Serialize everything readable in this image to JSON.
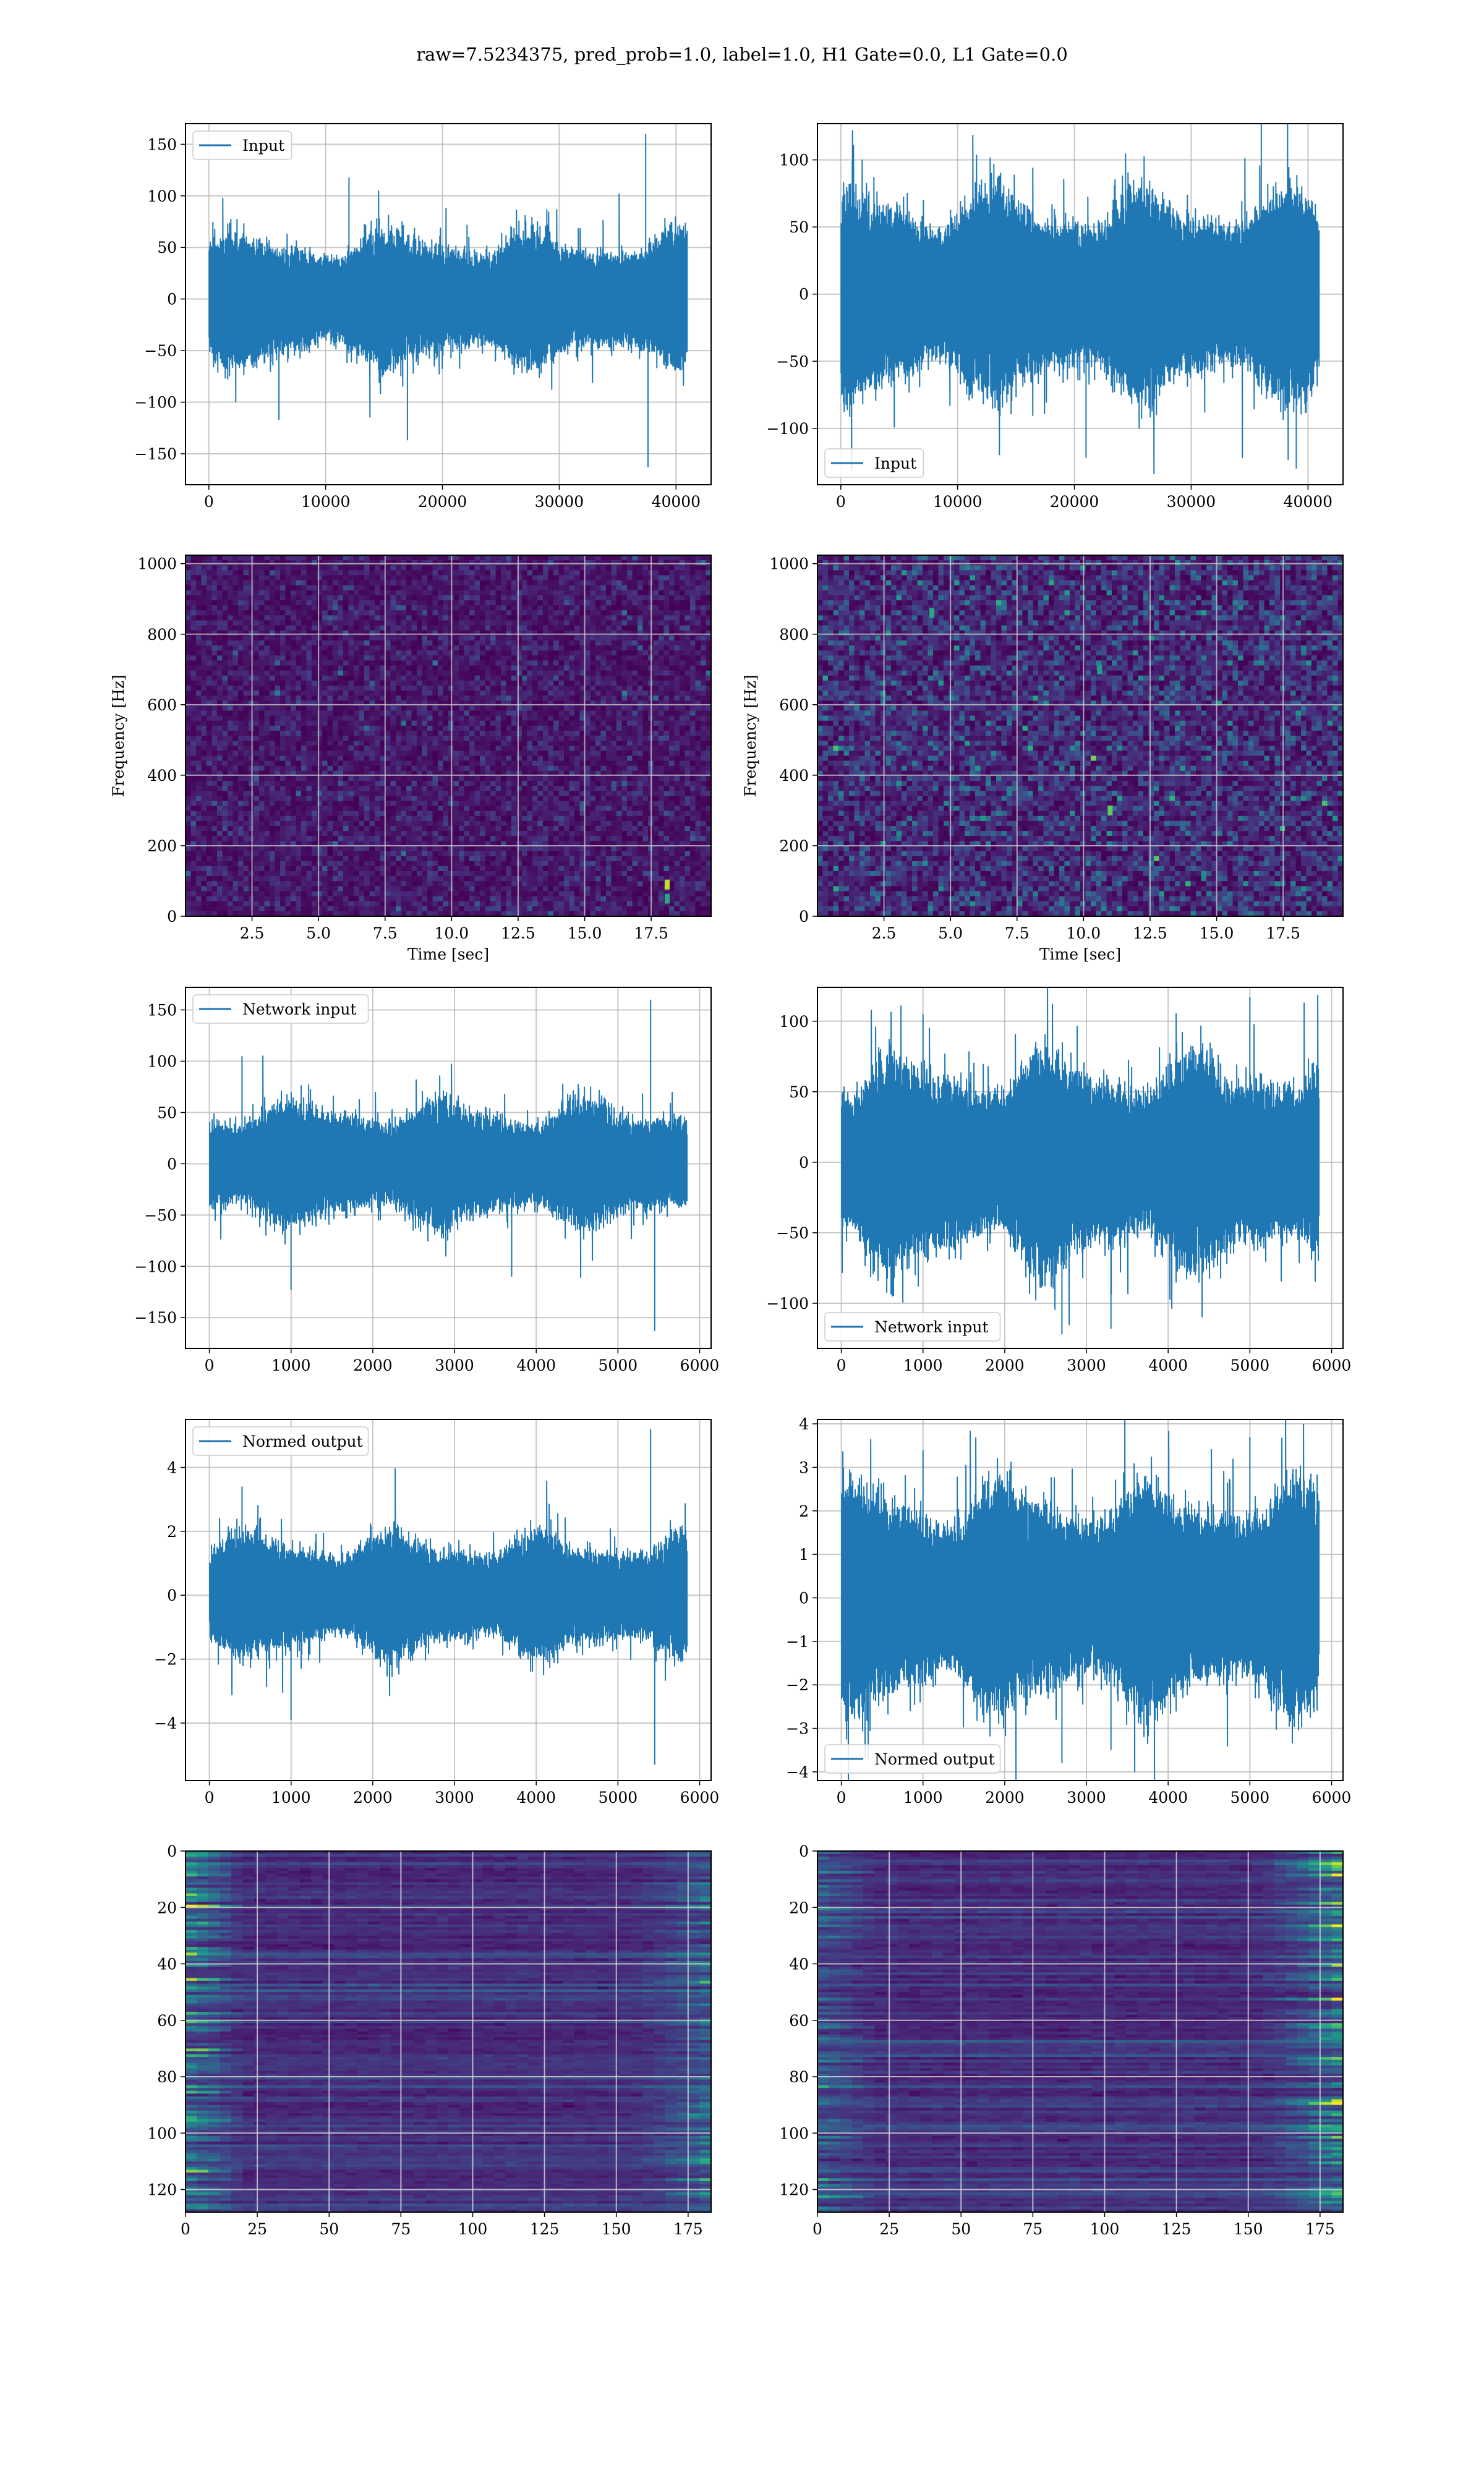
{
  "figure": {
    "title": "raw=7.5234375, pred_prob=1.0, label=1.0, H1 Gate=0.0, L1 Gate=0.0",
    "line_color": "#1f77b4",
    "grid_color": "#b0b0b0",
    "colormap": "viridis"
  },
  "chart_data": [
    {
      "id": "input-h1",
      "type": "line",
      "title": "",
      "xlabel": "",
      "ylabel": "",
      "series": [
        {
          "name": "Input",
          "n": 40960,
          "amplitude_sd": 22,
          "spikes": [
            {
              "x": 37400,
              "y": 160
            },
            {
              "x": 37600,
              "y": -163
            },
            {
              "x": 17000,
              "y": -137
            },
            {
              "x": 12000,
              "y": 118
            },
            {
              "x": 6000,
              "y": -117
            }
          ]
        }
      ],
      "xlim": [
        -2000,
        43000
      ],
      "ylim": [
        -180,
        170
      ],
      "xticks": [
        0,
        10000,
        20000,
        30000,
        40000
      ],
      "yticks": [
        -150,
        -100,
        -50,
        0,
        50,
        100,
        150
      ],
      "legend": "upper-left",
      "grid": true
    },
    {
      "id": "input-l1",
      "type": "line",
      "title": "",
      "xlabel": "",
      "ylabel": "",
      "series": [
        {
          "name": "Input",
          "n": 40960,
          "amplitude_sd": 26,
          "spikes": [
            {
              "x": 1000,
              "y": 122
            },
            {
              "x": 36000,
              "y": 127
            },
            {
              "x": 39000,
              "y": -130
            },
            {
              "x": 21000,
              "y": -122
            }
          ]
        }
      ],
      "xlim": [
        -2000,
        43000
      ],
      "ylim": [
        -142,
        127
      ],
      "xticks": [
        0,
        10000,
        20000,
        30000,
        40000
      ],
      "yticks": [
        -100,
        -50,
        0,
        50,
        100
      ],
      "legend": "lower-left",
      "grid": true
    },
    {
      "id": "spectrogram-h1",
      "type": "heatmap",
      "title": "",
      "xlabel": "Time [sec]",
      "ylabel": "Frequency [Hz]",
      "xlim": [
        0,
        19.75
      ],
      "ylim": [
        0,
        1024
      ],
      "xticks": [
        2.5,
        5.0,
        7.5,
        10.0,
        12.5,
        15.0,
        17.5
      ],
      "yticks": [
        0,
        200,
        400,
        600,
        800,
        1000
      ],
      "intensity": 0.16,
      "hotspots": [
        {
          "t": 18.1,
          "f": 90,
          "v": 0.9
        },
        {
          "t": 18.1,
          "f": 50,
          "v": 0.6
        }
      ],
      "grid": true
    },
    {
      "id": "spectrogram-l1",
      "type": "heatmap",
      "title": "",
      "xlabel": "Time [sec]",
      "ylabel": "Frequency [Hz]",
      "xlim": [
        0,
        19.75
      ],
      "ylim": [
        0,
        1024
      ],
      "xticks": [
        2.5,
        5.0,
        7.5,
        10.0,
        12.5,
        15.0,
        17.5
      ],
      "yticks": [
        0,
        200,
        400,
        600,
        800,
        1000
      ],
      "intensity": 0.3,
      "hotspots": [
        {
          "t": 11.0,
          "f": 300,
          "v": 0.75
        },
        {
          "t": 4.3,
          "f": 860,
          "v": 0.6
        },
        {
          "t": 10.6,
          "f": 700,
          "v": 0.55
        }
      ],
      "grid": true
    },
    {
      "id": "network-input-h1",
      "type": "line",
      "title": "",
      "xlabel": "",
      "ylabel": "",
      "series": [
        {
          "name": "Network input",
          "n": 5848,
          "amplitude_sd": 21,
          "spikes": [
            {
              "x": 5400,
              "y": 160
            },
            {
              "x": 5450,
              "y": -163
            },
            {
              "x": 1000,
              "y": -123
            },
            {
              "x": 400,
              "y": 105
            },
            {
              "x": 3700,
              "y": -110
            }
          ]
        }
      ],
      "xlim": [
        -292,
        6140
      ],
      "ylim": [
        -180,
        172
      ],
      "xticks": [
        0,
        1000,
        2000,
        3000,
        4000,
        5000,
        6000
      ],
      "yticks": [
        -150,
        -100,
        -50,
        0,
        50,
        100,
        150
      ],
      "legend": "upper-left",
      "grid": true
    },
    {
      "id": "network-input-l1",
      "type": "line",
      "title": "",
      "xlabel": "",
      "ylabel": "",
      "series": [
        {
          "name": "Network input",
          "n": 5848,
          "amplitude_sd": 26,
          "spikes": [
            {
              "x": 1000,
              "y": 105
            },
            {
              "x": 5000,
              "y": 117
            },
            {
              "x": 2700,
              "y": -122
            },
            {
              "x": 3300,
              "y": -118
            }
          ]
        }
      ],
      "xlim": [
        -292,
        6140
      ],
      "ylim": [
        -132,
        124
      ],
      "xticks": [
        0,
        1000,
        2000,
        3000,
        4000,
        5000,
        6000
      ],
      "yticks": [
        -100,
        -50,
        0,
        50,
        100
      ],
      "legend": "lower-left",
      "grid": true
    },
    {
      "id": "normed-output-h1",
      "type": "line",
      "title": "",
      "xlabel": "",
      "ylabel": "",
      "series": [
        {
          "name": "Normed output",
          "n": 5848,
          "amplitude_sd": 0.65,
          "spikes": [
            {
              "x": 5400,
              "y": 5.2
            },
            {
              "x": 5450,
              "y": -5.3
            },
            {
              "x": 1000,
              "y": -3.9
            },
            {
              "x": 400,
              "y": 3.4
            }
          ]
        }
      ],
      "xlim": [
        -292,
        6140
      ],
      "ylim": [
        -5.8,
        5.5
      ],
      "xticks": [
        0,
        1000,
        2000,
        3000,
        4000,
        5000,
        6000
      ],
      "yticks": [
        -4,
        -2,
        0,
        2,
        4
      ],
      "legend": "upper-left",
      "grid": true
    },
    {
      "id": "normed-output-l1",
      "type": "line",
      "title": "",
      "xlabel": "",
      "ylabel": "",
      "series": [
        {
          "name": "Normed output",
          "n": 5848,
          "amplitude_sd": 0.9,
          "spikes": [
            {
              "x": 5000,
              "y": 3.7
            },
            {
              "x": 1000,
              "y": 3.4
            },
            {
              "x": 2700,
              "y": -3.8
            },
            {
              "x": 3300,
              "y": -3.5
            }
          ]
        }
      ],
      "xlim": [
        -292,
        6140
      ],
      "ylim": [
        -4.2,
        4.1
      ],
      "xticks": [
        0,
        1000,
        2000,
        3000,
        4000,
        5000,
        6000
      ],
      "yticks": [
        -4,
        -3,
        -2,
        -1,
        0,
        1,
        2,
        3,
        4
      ],
      "legend": "lower-left",
      "grid": true
    },
    {
      "id": "feature-map-h1",
      "type": "heatmap",
      "title": "",
      "xlabel": "",
      "ylabel": "",
      "rows": 128,
      "cols": 183,
      "xlim": [
        0,
        183
      ],
      "ylim": [
        128,
        0
      ],
      "xticks": [
        0,
        25,
        50,
        75,
        100,
        125,
        150,
        175
      ],
      "yticks": [
        0,
        20,
        40,
        60,
        80,
        100,
        120
      ],
      "left_activity": 0.75,
      "right_activity": 0.55,
      "grid": true
    },
    {
      "id": "feature-map-l1",
      "type": "heatmap",
      "title": "",
      "xlabel": "",
      "ylabel": "",
      "rows": 128,
      "cols": 183,
      "xlim": [
        0,
        183
      ],
      "ylim": [
        128,
        0
      ],
      "xticks": [
        0,
        25,
        50,
        75,
        100,
        125,
        150,
        175
      ],
      "yticks": [
        0,
        20,
        40,
        60,
        80,
        100,
        120
      ],
      "left_activity": 0.35,
      "right_activity": 1.0,
      "grid": true
    }
  ]
}
